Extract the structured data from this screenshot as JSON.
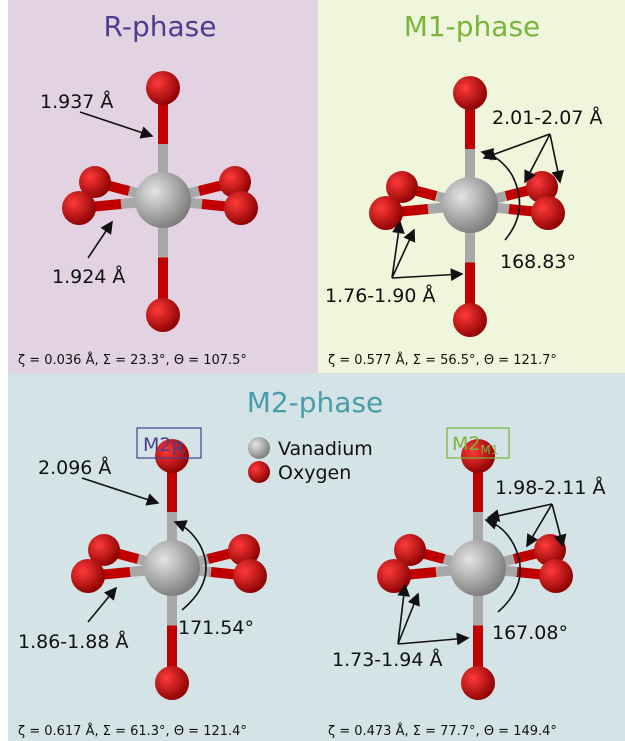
{
  "panels": [
    {
      "title": "R-phase",
      "labels": [
        "1.937 Å",
        "1.924 Å"
      ],
      "stats": "ζ = 0.036 Å, Σ = 23.3°, Θ = 107.5°"
    },
    {
      "title": "M1-phase",
      "labels": [
        "2.01-2.07 Å",
        "168.83°",
        "1.76-1.90 Å"
      ],
      "stats": "ζ = 0.577 Å, Σ = 56.5°, Θ = 121.7°"
    }
  ],
  "m2_phase": {
    "title": "M2-phase",
    "legend": [
      "Vanadium",
      "Oxygen"
    ],
    "structures": [
      {
        "name": "M2",
        "subscript": "R",
        "labels": [
          "2.096 Å",
          "1.86-1.88 Å",
          "171.54°"
        ],
        "stats": "ζ = 0.617 Å, Σ = 61.3°, Θ = 121.4°"
      },
      {
        "name": "M2",
        "subscript": "M1",
        "labels": [
          "1.98-2.11 Å",
          "167.08°",
          "1.73-1.94 Å"
        ],
        "stats": "ζ = 0.473 Å, Σ = 77.7°, Θ = 149.4°"
      }
    ]
  }
}
